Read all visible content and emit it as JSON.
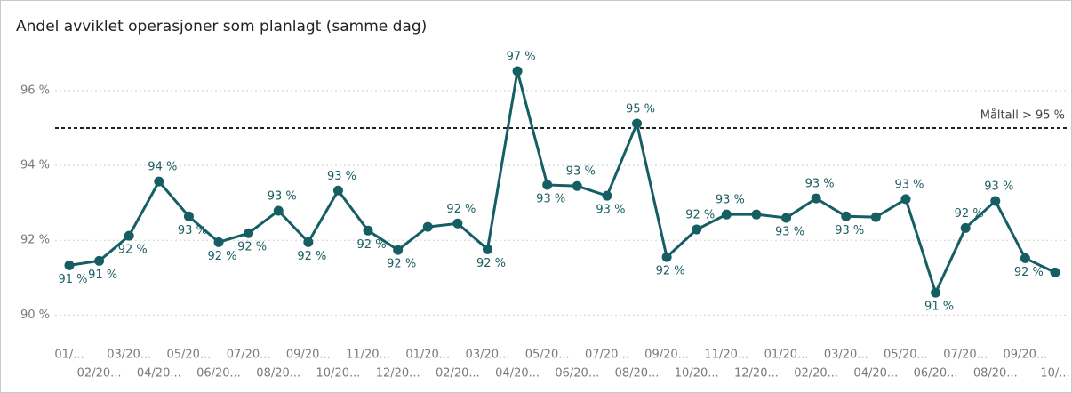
{
  "chart_data": {
    "type": "line",
    "title": "Andel avviklet operasjoner som planlagt (samme dag)",
    "categories": [
      "01/...",
      "02/20...",
      "03/20...",
      "04/20...",
      "05/20...",
      "06/20...",
      "07/20...",
      "08/20...",
      "09/20...",
      "10/20...",
      "11/20...",
      "12/20...",
      "01/20...",
      "02/20...",
      "03/20...",
      "04/20...",
      "05/20...",
      "06/20...",
      "07/20...",
      "08/20...",
      "09/20...",
      "10/20...",
      "11/20...",
      "12/20...",
      "01/20...",
      "02/20...",
      "03/20...",
      "04/20...",
      "05/20...",
      "06/20...",
      "07/20...",
      "08/20...",
      "09/20...",
      "10/..."
    ],
    "series": [
      {
        "color": "#155e63",
        "values": [
          91.33,
          91.45,
          92.12,
          93.57,
          92.64,
          91.95,
          92.19,
          92.79,
          91.95,
          93.33,
          92.26,
          91.74,
          92.36,
          92.45,
          91.76,
          96.52,
          93.48,
          93.45,
          93.19,
          95.12,
          91.55,
          92.29,
          92.69,
          92.69,
          92.6,
          93.12,
          92.64,
          92.62,
          93.1,
          90.6,
          92.33,
          93.05,
          91.52,
          91.14
        ],
        "value_labels": [
          "91 %",
          "91 %",
          "92 %",
          "94 %",
          "93 %",
          "92 %",
          "92 %",
          "93 %",
          "92 %",
          "93 %",
          "92 %",
          "92 %",
          null,
          "92 %",
          "92 %",
          "97 %",
          "93 %",
          "93 %",
          "93 %",
          "95 %",
          "92 %",
          "92 %",
          "93 %",
          null,
          "93 %",
          "93 %",
          "93 %",
          null,
          "93 %",
          "91 %",
          "92 %",
          "93 %",
          "92 %",
          null
        ]
      }
    ],
    "ylim": [
      89.7,
      97.4
    ],
    "yticks": [
      {
        "value": 90,
        "label": "90 %"
      },
      {
        "value": 92,
        "label": "92 %"
      },
      {
        "value": 94,
        "label": "94 %"
      },
      {
        "value": 96,
        "label": "96 %"
      }
    ],
    "grid": true,
    "target": {
      "value": 95,
      "label": "Måltall > 95 %"
    }
  }
}
